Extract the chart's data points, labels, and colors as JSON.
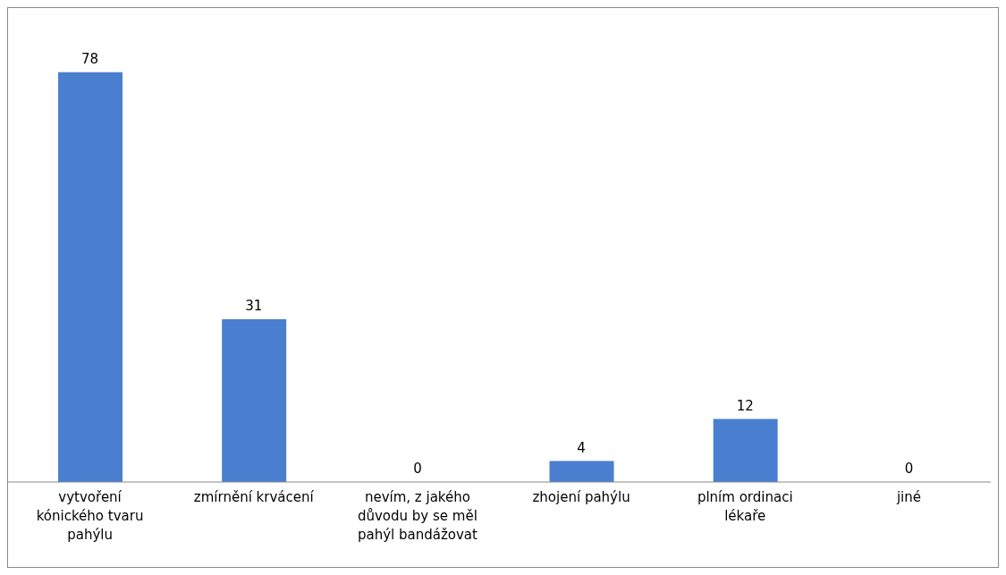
{
  "chart_data": {
    "type": "bar",
    "categories": [
      "vytvoření kónického tvaru pahýlu",
      "zmírnění krvácení",
      "nevím, z jakého důvodu by se měl pahýl bandážovat",
      "zhojení pahýlu",
      "plním ordinaci lékaře",
      "jiné"
    ],
    "values": [
      78,
      31,
      0,
      4,
      12,
      0
    ],
    "color": "#4a7fd0",
    "data_labels": true,
    "grid": false
  }
}
